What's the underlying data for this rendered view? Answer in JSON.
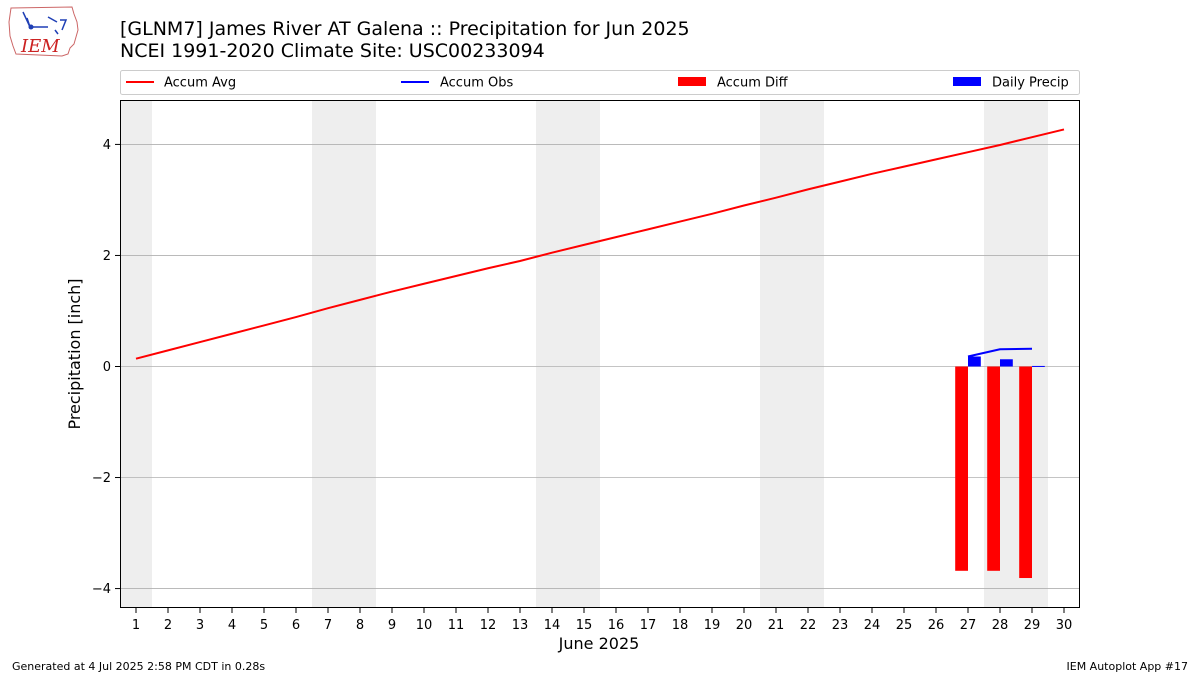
{
  "chart_data": {
    "type": "bar",
    "title_line1": "[GLNM7] James River  AT Galena :: Precipitation for Jun 2025",
    "title_line2": "NCEI 1991-2020 Climate Site: USC00233094",
    "xlabel": "June 2025",
    "ylabel": "Precipitation [inch]",
    "xlim": [
      0.5,
      30.5
    ],
    "ylim": [
      -4.35,
      4.8
    ],
    "x_ticks": [
      "1",
      "2",
      "3",
      "4",
      "5",
      "6",
      "7",
      "8",
      "9",
      "10",
      "11",
      "12",
      "13",
      "14",
      "15",
      "16",
      "17",
      "18",
      "19",
      "20",
      "21",
      "22",
      "23",
      "24",
      "25",
      "26",
      "27",
      "28",
      "29",
      "30"
    ],
    "y_ticks": [
      {
        "value": 4,
        "label": "4"
      },
      {
        "value": 2,
        "label": "2"
      },
      {
        "value": 0,
        "label": "0"
      },
      {
        "value": -2,
        "label": "−2"
      },
      {
        "value": -4,
        "label": "−4"
      }
    ],
    "grid": "horizontal",
    "weekend_shading": [
      [
        0.5,
        1.5
      ],
      [
        6.5,
        8.5
      ],
      [
        13.5,
        15.5
      ],
      [
        20.5,
        22.5
      ],
      [
        27.5,
        29.5
      ]
    ],
    "legend": [
      {
        "label": "Accum Avg",
        "kind": "line",
        "color": "#ff0000"
      },
      {
        "label": "Accum Obs",
        "kind": "line",
        "color": "#0000ff"
      },
      {
        "label": "Accum Diff",
        "kind": "bar",
        "color": "#ff0000"
      },
      {
        "label": "Daily Precip",
        "kind": "bar",
        "color": "#0000ff"
      }
    ],
    "series": [
      {
        "name": "Accum Avg",
        "type": "line",
        "color": "#ff0000",
        "x": [
          1,
          2,
          3,
          4,
          5,
          6,
          7,
          8,
          9,
          10,
          11,
          12,
          13,
          14,
          15,
          16,
          17,
          18,
          19,
          20,
          21,
          22,
          23,
          24,
          25,
          26,
          27,
          28,
          29,
          30
        ],
        "values": [
          0.14,
          0.29,
          0.44,
          0.59,
          0.74,
          0.89,
          1.05,
          1.2,
          1.35,
          1.49,
          1.63,
          1.77,
          1.9,
          2.05,
          2.19,
          2.33,
          2.47,
          2.61,
          2.75,
          2.9,
          3.04,
          3.19,
          3.33,
          3.47,
          3.6,
          3.73,
          3.86,
          3.99,
          4.13,
          4.27
        ]
      },
      {
        "name": "Accum Obs",
        "type": "line",
        "color": "#0000ff",
        "x": [
          27,
          28,
          29
        ],
        "values": [
          0.18,
          0.31,
          0.32
        ]
      },
      {
        "name": "Accum Diff",
        "type": "bar",
        "color": "#ff0000",
        "x": [
          27,
          28,
          29
        ],
        "values": [
          -3.68,
          -3.68,
          -3.81
        ]
      },
      {
        "name": "Daily Precip",
        "type": "bar",
        "color": "#0000ff",
        "x": [
          27,
          28,
          29
        ],
        "values": [
          0.18,
          0.13,
          0.01
        ]
      }
    ]
  },
  "logo": {
    "text": "IEM"
  },
  "footer": {
    "left": "Generated at 4 Jul 2025 2:58 PM CDT in 0.28s",
    "right": "IEM Autoplot App #17"
  }
}
